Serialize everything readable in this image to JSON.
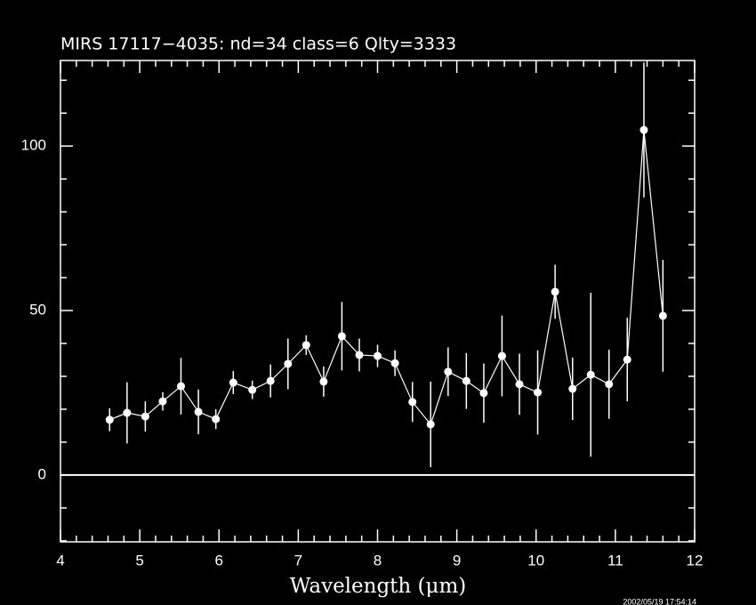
{
  "chart_data": {
    "type": "scatter",
    "title": "MIRS 17117−4035:    nd=34    class=6    Qlty=3333",
    "x_label": "Wavelength (μm)",
    "timestamp": "2002/05/19 17:54:14",
    "x": [
      4.62,
      4.84,
      5.07,
      5.29,
      5.52,
      5.74,
      5.96,
      6.18,
      6.42,
      6.65,
      6.87,
      7.1,
      7.32,
      7.55,
      7.77,
      8.0,
      8.22,
      8.44,
      8.67,
      8.89,
      9.12,
      9.34,
      9.57,
      9.79,
      10.02,
      10.24,
      10.46,
      10.69,
      10.92,
      11.15,
      11.36,
      11.6
    ],
    "values": [
      16.8,
      18.9,
      17.8,
      22.4,
      27,
      19.2,
      17,
      28.1,
      25.9,
      28.6,
      33.8,
      39.5,
      28.4,
      42.2,
      36.5,
      36.2,
      34,
      22.2,
      15.4,
      31.4,
      28.6,
      24.9,
      36.2,
      27.6,
      25.1,
      55.7,
      26.2,
      30.5,
      27.6,
      35.1,
      104.9,
      48.4
    ],
    "errors": [
      3.5,
      9.3,
      4.6,
      2.8,
      8.6,
      6.8,
      3,
      3.5,
      2.8,
      5,
      7.7,
      3,
      4.6,
      10.4,
      5,
      3.4,
      3.9,
      6.1,
      13,
      7.4,
      8.5,
      9,
      12.3,
      9.3,
      12.8,
      8.2,
      9.5,
      24.9,
      10.5,
      12.7,
      20.5,
      17
    ],
    "color": "#ffffff",
    "xlim": [
      4,
      12
    ],
    "ylim": [
      -20.3,
      126
    ],
    "xticks": [
      4,
      5,
      6,
      7,
      8,
      9,
      10,
      11,
      12
    ],
    "xticks_minor": [
      4.2,
      4.4,
      4.6,
      4.8,
      5.2,
      5.4,
      5.6,
      5.8,
      6.2,
      6.4,
      6.6,
      6.8,
      7.2,
      7.4,
      7.6,
      7.8,
      8.2,
      8.4,
      8.6,
      8.8,
      9.2,
      9.4,
      9.6,
      9.8,
      10.2,
      10.4,
      10.6,
      10.8,
      11.2,
      11.4,
      11.6,
      11.8
    ],
    "yticks": [
      0,
      50,
      100
    ],
    "yticks_minor": [
      -20,
      -10,
      10,
      20,
      30,
      40,
      60,
      70,
      80,
      90,
      110,
      120
    ],
    "hline": 0
  }
}
